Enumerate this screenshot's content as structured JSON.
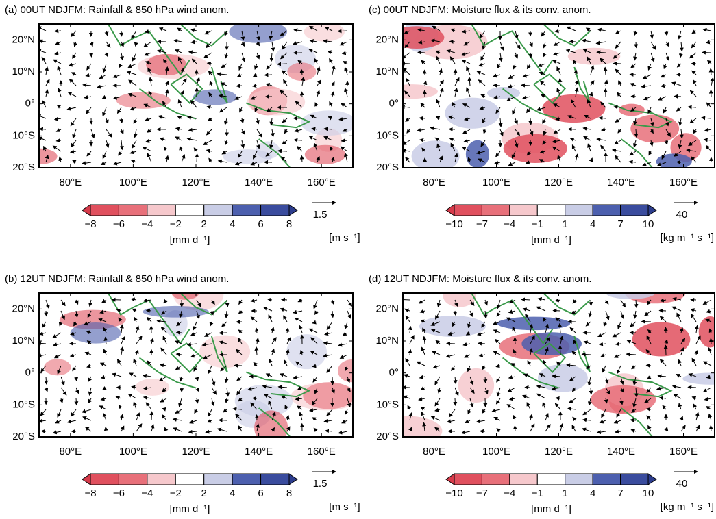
{
  "panels": [
    {
      "title": "(a) 00UT NDJFM: Rainfall & 850 hPa wind anom.",
      "lat_labels": [
        "20°N",
        "10°N",
        "0°",
        "10°S",
        "20°S"
      ],
      "lon_labels": [
        "80°E",
        "100°E",
        "120°E",
        "140°E",
        "160°E"
      ],
      "colorbar": {
        "labels": [
          "−8",
          "−6",
          "−4",
          "−2",
          "2",
          "4",
          "6",
          "8"
        ],
        "colors": [
          "#d63a4a",
          "#e0505e",
          "#e8707a",
          "#f6c8cc",
          "#ffffff",
          "#c9cde6",
          "#4c5fae",
          "#3a4c9e",
          "#2c3c8c"
        ],
        "unit": "[mm d⁻¹]"
      },
      "ref_vector": {
        "label": "1.5",
        "unit": "[m s⁻¹]"
      }
    },
    {
      "title": "(c) 00UT NDJFM: Moisture flux & its conv. anom.",
      "lat_labels": [
        "20°N",
        "10°N",
        "0°",
        "10°S",
        "20°S"
      ],
      "lon_labels": [
        "80°E",
        "100°E",
        "120°E",
        "140°E",
        "160°E"
      ],
      "colorbar": {
        "labels": [
          "−10",
          "−7",
          "−4",
          "−1",
          "1",
          "4",
          "7",
          "10"
        ],
        "colors": [
          "#d63a4a",
          "#e0505e",
          "#e8707a",
          "#f6c8cc",
          "#ffffff",
          "#c9cde6",
          "#4c5fae",
          "#3a4c9e",
          "#2c3c8c"
        ],
        "unit": "[mm d⁻¹]"
      },
      "ref_vector": {
        "label": "40",
        "unit": "[kg m⁻¹ s⁻¹]"
      }
    },
    {
      "title": "(b) 12UT NDJFM: Rainfall & 850 hPa wind anom.",
      "lat_labels": [
        "20°N",
        "10°N",
        "0°",
        "10°S",
        "20°S"
      ],
      "lon_labels": [
        "80°E",
        "100°E",
        "120°E",
        "140°E",
        "160°E"
      ],
      "colorbar": {
        "labels": [
          "−8",
          "−6",
          "−4",
          "−2",
          "2",
          "4",
          "6",
          "8"
        ],
        "colors": [
          "#d63a4a",
          "#e0505e",
          "#e8707a",
          "#f6c8cc",
          "#ffffff",
          "#c9cde6",
          "#4c5fae",
          "#3a4c9e",
          "#2c3c8c"
        ],
        "unit": "[mm d⁻¹]"
      },
      "ref_vector": {
        "label": "1.5",
        "unit": "[m s⁻¹]"
      }
    },
    {
      "title": "(d) 12UT NDJFM: Moisture flux & its conv. anom.",
      "lat_labels": [
        "20°N",
        "10°N",
        "0°",
        "10°S",
        "20°S"
      ],
      "lon_labels": [
        "80°E",
        "100°E",
        "120°E",
        "140°E",
        "160°E"
      ],
      "colorbar": {
        "labels": [
          "−10",
          "−7",
          "−4",
          "−1",
          "1",
          "4",
          "7",
          "10"
        ],
        "colors": [
          "#d63a4a",
          "#e0505e",
          "#e8707a",
          "#f6c8cc",
          "#ffffff",
          "#c9cde6",
          "#4c5fae",
          "#3a4c9e",
          "#2c3c8c"
        ],
        "unit": "[mm d⁻¹]"
      },
      "ref_vector": {
        "label": "40",
        "unit": "[kg m⁻¹ s⁻¹]"
      }
    }
  ]
}
